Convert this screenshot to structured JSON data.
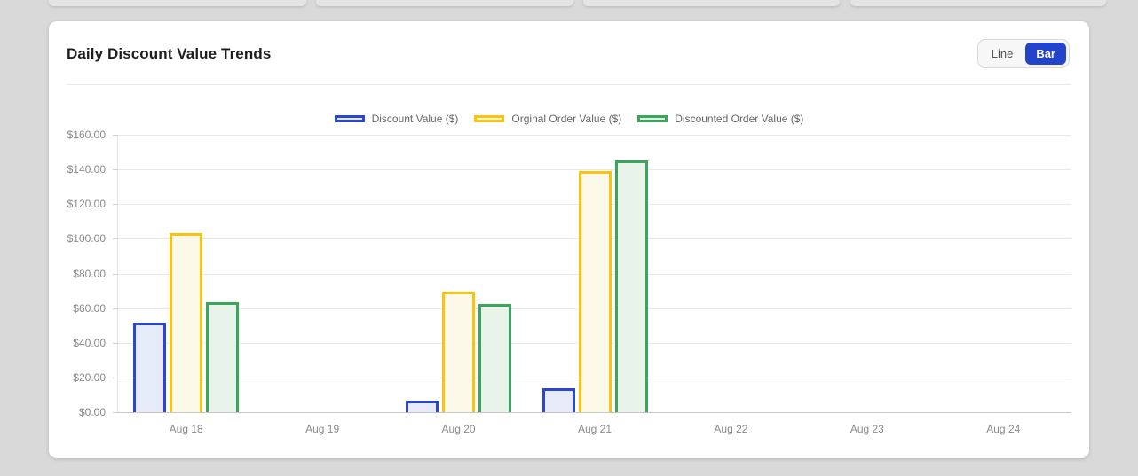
{
  "card": {
    "title": "Daily Discount Value Trends",
    "toggle": {
      "line_label": "Line",
      "bar_label": "Bar",
      "active": "Bar",
      "active_color": "#2443cb"
    }
  },
  "chart_data": {
    "type": "bar",
    "title": "Daily Discount Value Trends",
    "categories": [
      "Aug 18",
      "Aug 19",
      "Aug 20",
      "Aug 21",
      "Aug 22",
      "Aug 23",
      "Aug 24"
    ],
    "series": [
      {
        "name": "Discount Value ($)",
        "color": "#2a46d2",
        "fill": "#e6eaf9",
        "values": [
          51.8,
          0,
          6.6,
          13.6,
          0,
          0,
          0
        ]
      },
      {
        "name": "Orginal Order Value ($)",
        "color": "#f8c410",
        "fill": "#fdf9e8",
        "values": [
          103.4,
          0,
          69.5,
          139.3,
          0,
          0,
          0
        ]
      },
      {
        "name": "Discounted Order Value ($)",
        "color": "#3aa65c",
        "fill": "#e8f3ea",
        "values": [
          63.3,
          0,
          62.5,
          145.3,
          0,
          0,
          0
        ]
      }
    ],
    "ylim": [
      0,
      160
    ],
    "ytick_step": 20,
    "ytick_prefix": "$",
    "ytick_decimals": 2,
    "legend_position": "top",
    "grid": "horizontal"
  }
}
